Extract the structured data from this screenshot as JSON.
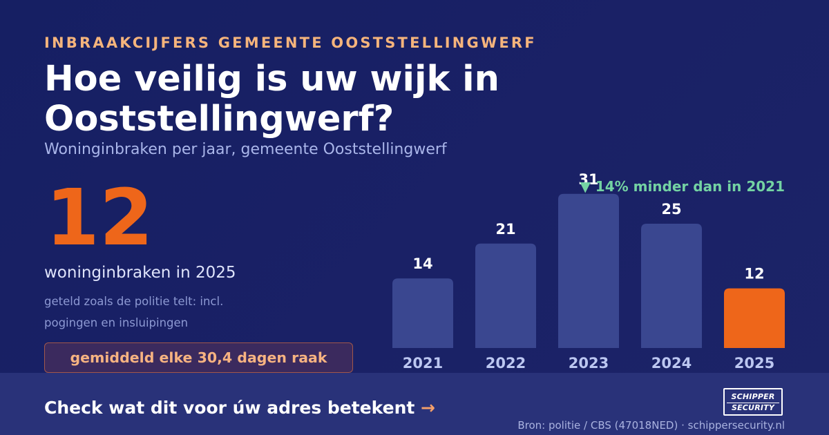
{
  "header": {
    "kicker": "INBRAAKCIJFERS GEMEENTE OOSTSTELLINGWERF",
    "title": "Hoe veilig is uw wijk in Ooststellingwerf?",
    "subtitle": "Woninginbraken per jaar, gemeente Ooststellingwerf"
  },
  "highlight": {
    "number": "12",
    "caption": "woninginbraken in 2025",
    "note": "geteld zoals de politie telt: incl. pogingen en insluipingen",
    "badge": "gemiddeld elke 30,4 dagen raak"
  },
  "chart_data": {
    "type": "bar",
    "categories": [
      "2021",
      "2022",
      "2023",
      "2024",
      "2025"
    ],
    "values": [
      14,
      21,
      31,
      25,
      12
    ],
    "highlight_index": 4,
    "annotation": "▼ 14% minder dan in 2021",
    "colors": {
      "bar": "#3a4790",
      "highlight": "#ee661a",
      "annotation": "#74d3a3",
      "value_label": "#ffffff",
      "category_label": "#bcc7f1"
    }
  },
  "footer": {
    "cta": "Check wat dit voor úw adres betekent",
    "cta_arrow": "→",
    "logo_line1": "SCHIPPER",
    "logo_line2": "SECURITY",
    "source": "Bron: politie / CBS (47018NED) · schippersecurity.nl"
  }
}
